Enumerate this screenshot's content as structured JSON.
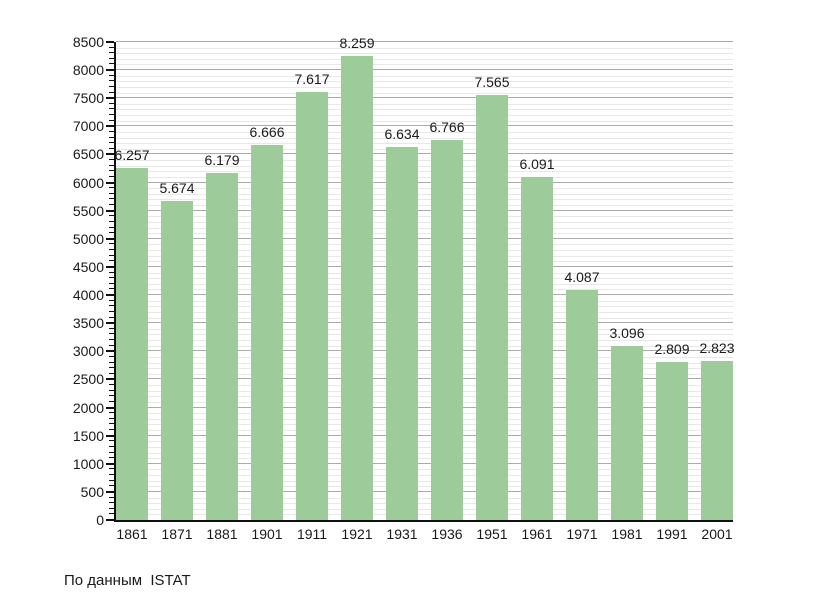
{
  "chart_data": {
    "type": "bar",
    "title": "",
    "source_note": "По данным  ISTAT",
    "categories": [
      "1861",
      "1871",
      "1881",
      "1901",
      "1911",
      "1921",
      "1931",
      "1936",
      "1951",
      "1961",
      "1971",
      "1981",
      "1991",
      "2001"
    ],
    "values": [
      6257,
      5674,
      6179,
      6666,
      7617,
      8259,
      6634,
      6766,
      7565,
      6091,
      4087,
      3096,
      2809,
      2823
    ],
    "value_labels": [
      "6.257",
      "5.674",
      "6.179",
      "6.666",
      "7.617",
      "8.259",
      "6.634",
      "6.766",
      "7.565",
      "6.091",
      "4.087",
      "3.096",
      "2.809",
      "2.823"
    ],
    "xlabel": "",
    "ylabel": "",
    "ylim": [
      0,
      8500
    ],
    "y_major_step": 500,
    "y_minor_step": 100,
    "y_tick_labels": [
      "0",
      "500",
      "1000",
      "1500",
      "2000",
      "2500",
      "3000",
      "3500",
      "4000",
      "4500",
      "5000",
      "5500",
      "6000",
      "6500",
      "7000",
      "7500",
      "8000",
      "8500"
    ],
    "grid": "horizontal-major-and-minor",
    "legend": "none",
    "colors": {
      "bar": "#9DCB9A",
      "grid_major": "#ababab",
      "grid_minor": "#e8e8e8",
      "axis": "#111111",
      "text": "#1a1a1a",
      "background": "#ffffff"
    }
  }
}
